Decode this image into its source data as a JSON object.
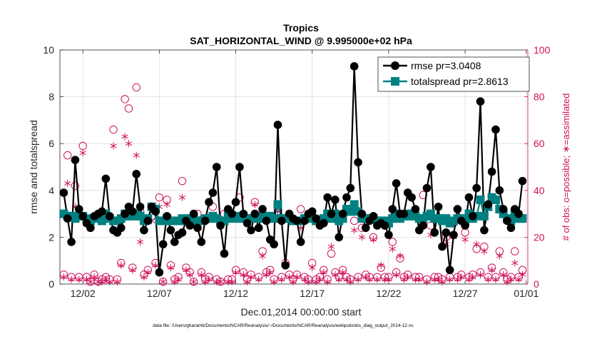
{
  "chart_data": {
    "type": "line",
    "title": "Tropics",
    "subtitle": "SAT_HORIZONTAL_WIND @ 9.995000e+02 hPa",
    "xlabel": "Dec.01,2014 00:00:00 start",
    "ylabel_left": "rmse and totalspread",
    "ylabel_right": "# of obs: o=possible; ∗=assimilated",
    "footnote": "data file: /Users/gharamti/Documents/NCAR/Reanalysis/~/Documents/NCAR/Reanalysis/webpub/obs_diag_output_2014-12.nc",
    "xlim": [
      0.5,
      31.1
    ],
    "ylim_left": [
      0,
      10
    ],
    "ylim_right": [
      0,
      100
    ],
    "x_ticks": [
      2,
      7,
      12,
      17,
      22,
      27,
      31
    ],
    "x_tick_labels": [
      "12/02",
      "12/07",
      "12/12",
      "12/17",
      "12/22",
      "12/27",
      "01/01"
    ],
    "y_ticks_left": [
      0,
      2,
      4,
      6,
      8,
      10
    ],
    "y_ticks_right": [
      0,
      20,
      40,
      60,
      80,
      100
    ],
    "grid": true,
    "legend_position": "top-right",
    "colors": {
      "rmse": "#000000",
      "totalspread": "#008080",
      "obs": "#d0105a",
      "axis": "#262626",
      "grid": "#dcdcdc"
    },
    "series": [
      {
        "name": "rmse pr=3.0408",
        "axis": "left",
        "marker": "circle",
        "x": [
          0.75,
          1.0,
          1.25,
          1.5,
          1.75,
          2.0,
          2.25,
          2.5,
          2.75,
          3.0,
          3.25,
          3.5,
          3.75,
          4.0,
          4.25,
          4.5,
          4.75,
          5.0,
          5.25,
          5.5,
          5.75,
          6.0,
          6.25,
          6.5,
          6.75,
          7.0,
          7.25,
          7.5,
          7.75,
          8.0,
          8.25,
          8.5,
          8.75,
          9.0,
          9.25,
          9.5,
          9.75,
          10.0,
          10.25,
          10.5,
          10.75,
          11.0,
          11.25,
          11.5,
          11.75,
          12.0,
          12.25,
          12.5,
          12.75,
          13.0,
          13.25,
          13.5,
          13.75,
          14.0,
          14.25,
          14.5,
          14.75,
          15.0,
          15.25,
          15.5,
          15.75,
          16.0,
          16.25,
          16.5,
          16.75,
          17.0,
          17.25,
          17.5,
          17.75,
          18.0,
          18.25,
          18.5,
          18.75,
          19.0,
          19.25,
          19.5,
          19.75,
          20.0,
          20.25,
          20.5,
          20.75,
          21.0,
          21.25,
          21.5,
          21.75,
          22.0,
          22.25,
          22.5,
          22.75,
          23.0,
          23.25,
          23.5,
          23.75,
          24.0,
          24.25,
          24.5,
          24.75,
          25.0,
          25.25,
          25.5,
          25.75,
          26.0,
          26.25,
          26.5,
          26.75,
          27.0,
          27.25,
          27.5,
          27.75,
          28.0,
          28.25,
          28.5,
          28.75,
          29.0,
          29.25,
          29.5,
          29.75,
          30.0,
          30.25,
          30.5,
          30.75
        ],
        "values": [
          3.9,
          2.8,
          1.8,
          5.3,
          3.2,
          2.9,
          2.6,
          2.4,
          2.9,
          3.0,
          3.1,
          4.5,
          2.9,
          2.3,
          2.2,
          2.4,
          3.0,
          3.3,
          3.1,
          4.7,
          3.3,
          2.3,
          2.7,
          3.3,
          3.1,
          0.5,
          1.7,
          2.9,
          2.3,
          1.8,
          2.1,
          2.2,
          2.7,
          2.5,
          3.0,
          2.4,
          1.8,
          2.7,
          3.5,
          3.9,
          5.0,
          2.5,
          1.3,
          3.2,
          3.0,
          3.5,
          5.0,
          3.0,
          2.6,
          2.3,
          3.0,
          2.4,
          3.2,
          2.7,
          1.9,
          1.7,
          6.8,
          2.7,
          0.8,
          3.0,
          2.8,
          2.7,
          1.8,
          2.7,
          3.0,
          3.1,
          2.8,
          2.5,
          2.6,
          3.7,
          3.0,
          3.6,
          2.0,
          3.0,
          3.7,
          4.1,
          9.3,
          5.2,
          3.0,
          2.4,
          2.7,
          2.9,
          2.5,
          2.6,
          2.5,
          2.1,
          3.2,
          4.3,
          3.0,
          3.0,
          3.9,
          3.7,
          3.2,
          2.3,
          2.5,
          4.1,
          5.0,
          2.2,
          3.3,
          1.6,
          2.2,
          0.6,
          2.1,
          3.2,
          2.7,
          2.5,
          3.7,
          2.9,
          4.1,
          7.8,
          2.3,
          3.4,
          4.8,
          6.6,
          4.0,
          3.2,
          2.7,
          2.4,
          3.2,
          3.0,
          4.4
        ]
      },
      {
        "name": "totalspread pr=2.8613",
        "axis": "left",
        "marker": "square",
        "x": [
          0.75,
          1.0,
          1.25,
          1.5,
          1.75,
          2.0,
          2.25,
          2.5,
          2.75,
          3.0,
          3.25,
          3.5,
          3.75,
          4.0,
          4.25,
          4.5,
          4.75,
          5.0,
          5.25,
          5.5,
          5.75,
          6.0,
          6.25,
          6.5,
          6.75,
          7.0,
          7.25,
          7.5,
          7.75,
          8.0,
          8.25,
          8.5,
          8.75,
          9.0,
          9.25,
          9.5,
          9.75,
          10.0,
          10.25,
          10.5,
          10.75,
          11.0,
          11.25,
          11.5,
          11.75,
          12.0,
          12.25,
          12.5,
          12.75,
          13.0,
          13.25,
          13.5,
          13.75,
          14.0,
          14.25,
          14.5,
          14.75,
          15.0,
          15.25,
          15.5,
          15.75,
          16.0,
          16.25,
          16.5,
          16.75,
          17.0,
          17.25,
          17.5,
          17.75,
          18.0,
          18.25,
          18.5,
          18.75,
          19.0,
          19.25,
          19.5,
          19.75,
          20.0,
          20.25,
          20.5,
          20.75,
          21.0,
          21.25,
          21.5,
          21.75,
          22.0,
          22.25,
          22.5,
          22.75,
          23.0,
          23.25,
          23.5,
          23.75,
          24.0,
          24.25,
          24.5,
          24.75,
          25.0,
          25.25,
          25.5,
          25.75,
          26.0,
          26.25,
          26.5,
          26.75,
          27.0,
          27.25,
          27.5,
          27.75,
          28.0,
          28.25,
          28.5,
          28.75,
          29.0,
          29.25,
          29.5,
          29.75,
          30.0,
          30.25,
          30.5,
          30.75
        ],
        "values": [
          3.0,
          2.9,
          2.9,
          2.8,
          2.9,
          2.9,
          2.8,
          2.7,
          2.8,
          2.8,
          2.7,
          3.0,
          2.8,
          2.7,
          2.7,
          2.8,
          3.0,
          2.9,
          2.9,
          3.0,
          2.9,
          2.7,
          2.8,
          3.3,
          3.2,
          2.7,
          2.7,
          2.8,
          2.7,
          2.7,
          2.7,
          2.8,
          2.7,
          2.8,
          2.8,
          2.7,
          2.7,
          2.8,
          2.8,
          2.9,
          2.8,
          2.7,
          2.7,
          3.0,
          2.8,
          2.9,
          2.8,
          2.9,
          2.8,
          2.8,
          2.8,
          2.8,
          2.9,
          2.9,
          2.9,
          2.8,
          3.4,
          2.8,
          2.8,
          2.8,
          2.7,
          2.7,
          2.7,
          2.8,
          2.8,
          2.8,
          2.7,
          2.7,
          2.8,
          3.0,
          2.8,
          3.0,
          2.7,
          2.8,
          3.2,
          3.1,
          3.4,
          3.1,
          2.8,
          2.8,
          2.8,
          2.8,
          2.7,
          2.7,
          2.7,
          2.6,
          2.8,
          3.0,
          2.8,
          2.9,
          3.0,
          2.9,
          2.9,
          2.8,
          2.8,
          2.9,
          3.0,
          2.8,
          2.8,
          2.7,
          2.8,
          2.6,
          2.7,
          2.8,
          2.8,
          2.7,
          3.0,
          2.8,
          2.9,
          3.6,
          2.9,
          3.3,
          3.7,
          3.6,
          3.2,
          3.0,
          2.8,
          2.7,
          3.0,
          2.8,
          2.8
        ]
      },
      {
        "name": "possible",
        "axis": "right",
        "marker": "open-circle",
        "x": [
          0.75,
          1.0,
          1.25,
          1.5,
          1.75,
          2.0,
          2.25,
          2.5,
          2.75,
          3.0,
          3.25,
          3.5,
          3.75,
          4.0,
          4.25,
          4.5,
          4.75,
          5.0,
          5.25,
          5.5,
          5.75,
          6.0,
          6.25,
          6.5,
          6.75,
          7.0,
          7.25,
          7.5,
          7.75,
          8.0,
          8.25,
          8.5,
          8.75,
          9.0,
          9.25,
          9.5,
          9.75,
          10.0,
          10.25,
          10.5,
          10.75,
          11.0,
          11.25,
          11.5,
          11.75,
          12.0,
          12.25,
          12.5,
          12.75,
          13.0,
          13.25,
          13.5,
          13.75,
          14.0,
          14.25,
          14.5,
          14.75,
          15.0,
          15.25,
          15.5,
          15.75,
          16.0,
          16.25,
          16.5,
          16.75,
          17.0,
          17.25,
          17.5,
          17.75,
          18.0,
          18.25,
          18.5,
          18.75,
          19.0,
          19.25,
          19.5,
          19.75,
          20.0,
          20.25,
          20.5,
          20.75,
          21.0,
          21.25,
          21.5,
          21.75,
          22.0,
          22.25,
          22.5,
          22.75,
          23.0,
          23.25,
          23.5,
          23.75,
          24.0,
          24.25,
          24.5,
          24.75,
          25.0,
          25.25,
          25.5,
          25.75,
          26.0,
          26.25,
          26.5,
          26.75,
          27.0,
          27.25,
          27.5,
          27.75,
          28.0,
          28.25,
          28.5,
          28.75,
          29.0,
          29.25,
          29.5,
          29.75,
          30.0,
          30.25,
          30.5,
          30.75
        ],
        "values": [
          4,
          55,
          3,
          42,
          3,
          59,
          3,
          1,
          4,
          1,
          2,
          3,
          2,
          66,
          2,
          9,
          79,
          75,
          7,
          84,
          31,
          4,
          6,
          29,
          9,
          37,
          1,
          36,
          8,
          2,
          3,
          44,
          7,
          5,
          1,
          30,
          5,
          2,
          3,
          33,
          2,
          1,
          30,
          2,
          2,
          6,
          37,
          5,
          2,
          4,
          35,
          3,
          14,
          5,
          6,
          2,
          31,
          3,
          9,
          4,
          2,
          4,
          32,
          3,
          2,
          9,
          2,
          3,
          6,
          2,
          13,
          5,
          3,
          6,
          3,
          2,
          27,
          3,
          24,
          4,
          3,
          20,
          3,
          7,
          3,
          3,
          18,
          5,
          11,
          3,
          4,
          37,
          3,
          3,
          38,
          2,
          25,
          3,
          3,
          2,
          20,
          3,
          26,
          3,
          4,
          22,
          3,
          4,
          15,
          5,
          16,
          3,
          7,
          3,
          14,
          5,
          2,
          3,
          14,
          3,
          6
        ]
      },
      {
        "name": "assimilated",
        "axis": "right",
        "marker": "asterisk",
        "x": [
          0.75,
          1.0,
          1.25,
          1.5,
          1.75,
          2.0,
          2.25,
          2.5,
          2.75,
          3.0,
          3.25,
          3.5,
          3.75,
          4.0,
          4.25,
          4.5,
          4.75,
          5.0,
          5.25,
          5.5,
          5.75,
          6.0,
          6.25,
          6.5,
          6.75,
          7.0,
          7.25,
          7.5,
          7.75,
          8.0,
          8.25,
          8.5,
          8.75,
          9.0,
          9.25,
          9.5,
          9.75,
          10.0,
          10.25,
          10.5,
          10.75,
          11.0,
          11.25,
          11.5,
          11.75,
          12.0,
          12.25,
          12.5,
          12.75,
          13.0,
          13.25,
          13.5,
          13.75,
          14.0,
          14.25,
          14.5,
          14.75,
          15.0,
          15.25,
          15.5,
          15.75,
          16.0,
          16.25,
          16.5,
          16.75,
          17.0,
          17.25,
          17.5,
          17.75,
          18.0,
          18.25,
          18.5,
          18.75,
          19.0,
          19.25,
          19.5,
          19.75,
          20.0,
          20.25,
          20.5,
          20.75,
          21.0,
          21.25,
          21.5,
          21.75,
          22.0,
          22.25,
          22.5,
          22.75,
          23.0,
          23.25,
          23.5,
          23.75,
          24.0,
          24.25,
          24.5,
          24.75,
          25.0,
          25.25,
          25.5,
          25.75,
          26.0,
          26.25,
          26.5,
          26.75,
          27.0,
          27.25,
          27.5,
          27.75,
          28.0,
          28.25,
          28.5,
          28.75,
          29.0,
          29.25,
          29.5,
          29.75,
          30.0,
          30.25,
          30.5,
          30.75
        ],
        "values": [
          3,
          43,
          2,
          33,
          2,
          56,
          2,
          1,
          3,
          1,
          1,
          2,
          1,
          59,
          1,
          8,
          63,
          60,
          6,
          55,
          18,
          3,
          5,
          27,
          8,
          33,
          1,
          34,
          7,
          1,
          2,
          37,
          6,
          4,
          1,
          26,
          4,
          1,
          2,
          29,
          1,
          1,
          27,
          1,
          1,
          5,
          29,
          4,
          1,
          3,
          34,
          2,
          12,
          4,
          5,
          1,
          31,
          2,
          8,
          3,
          1,
          3,
          24,
          2,
          1,
          7,
          1,
          2,
          5,
          1,
          16,
          4,
          2,
          5,
          2,
          1,
          23,
          2,
          20,
          3,
          2,
          19,
          2,
          8,
          2,
          2,
          15,
          4,
          12,
          2,
          3,
          31,
          2,
          2,
          27,
          1,
          21,
          2,
          2,
          1,
          17,
          2,
          20,
          2,
          3,
          19,
          2,
          3,
          17,
          4,
          14,
          2,
          6,
          2,
          12,
          4,
          1,
          2,
          9,
          2,
          4
        ]
      }
    ]
  }
}
